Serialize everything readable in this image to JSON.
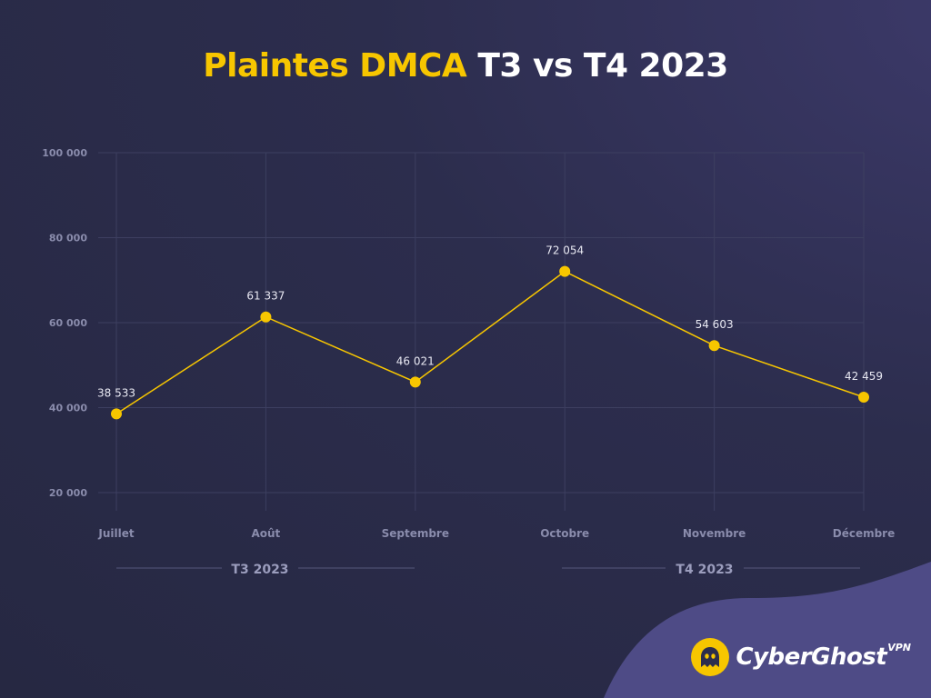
{
  "title": {
    "highlight": "Plaintes DMCA",
    "rest": "T3 vs T4 2023"
  },
  "colors": {
    "accent": "#f7c600",
    "background": "#2c2d4d",
    "grid": "#3d3f60",
    "tick_text": "#8a8cac"
  },
  "quarters": [
    {
      "label": "T3 2023"
    },
    {
      "label": "T4 2023"
    }
  ],
  "brand": {
    "name": "CyberGhost",
    "suffix": "VPN",
    "icon": "ghost-logo-icon"
  },
  "chart_data": {
    "type": "line",
    "categories": [
      "Juillet",
      "Août",
      "Septembre",
      "Octobre",
      "Novembre",
      "Décembre"
    ],
    "series": [
      {
        "values": [
          38533,
          61337,
          46021,
          72054,
          54603,
          42459
        ],
        "labels": [
          "38 533",
          "61 337",
          "46 021",
          "72 054",
          "54 603",
          "42 459"
        ],
        "color": "#f7c600"
      }
    ],
    "ylim": [
      15000,
      100000
    ],
    "yticks": [
      20000,
      40000,
      60000,
      80000,
      100000
    ],
    "ytick_labels": [
      "20 000",
      "40 000",
      "60 000",
      "80 000",
      "100 000"
    ],
    "grid": true,
    "xlabel": "",
    "ylabel": ""
  }
}
